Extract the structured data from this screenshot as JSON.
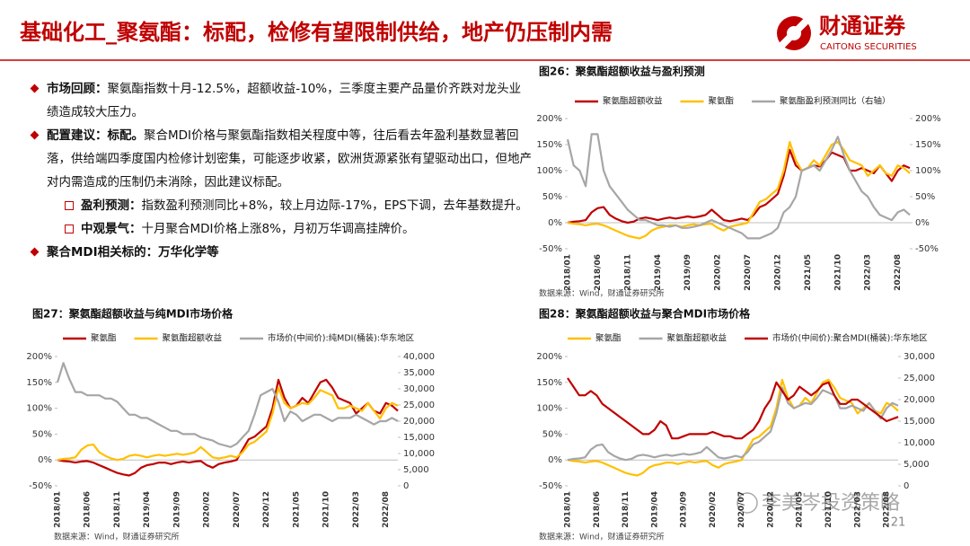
{
  "header": {
    "title": "基础化工_聚氨酯：标配，检修有望限制供给，地产仍压制内需",
    "logo_name": "财通证券",
    "logo_sub": "CAITONG SECURITIES"
  },
  "bullets": [
    {
      "label": "市场回顾：",
      "text": "聚氨酯指数十月-12.5%，超额收益-10%，三季度主要产品量价齐跌对龙头业绩造成较大压力。"
    },
    {
      "label": "配置建议：标配。",
      "text": "聚合MDI价格与聚氨酯指数相关程度中等，往后看去年盈利基数显著回落，供给端四季度国内检修计划密集，可能逐步收紧，欧洲货源紧张有望驱动出口，但地产对内需造成的压制仍未消除，因此建议标配。",
      "subs": [
        {
          "label": "盈利预测：",
          "text": "指数盈利预测同比+8%，较上月边际-17%，EPS下调，去年基数提升。"
        },
        {
          "label": "中观景气：",
          "text": "十月聚合MDI价格上涨8%，月初万华调高挂牌价。"
        }
      ]
    },
    {
      "label": "聚合MDI相关标的：万华化学等",
      "text": ""
    }
  ],
  "footer": {
    "page_number": "21",
    "watermark": "李美岑投资策略"
  },
  "chart_data": [
    {
      "type": "line",
      "title": "图26：聚氨酯超额收益与盈利预测",
      "source": "数据来源：Wind，财通证券研究所",
      "categories": [
        "2018/01",
        null,
        null,
        null,
        null,
        "2018/06",
        null,
        null,
        null,
        null,
        "2018/11",
        null,
        null,
        null,
        null,
        "2019/04",
        null,
        null,
        null,
        null,
        "2019/09",
        null,
        null,
        null,
        null,
        "2020/02",
        null,
        null,
        null,
        null,
        "2020/07",
        null,
        null,
        null,
        null,
        "2020/12",
        null,
        null,
        null,
        null,
        "2021/05",
        null,
        null,
        null,
        null,
        "2021/10",
        null,
        null,
        null,
        null,
        "2022/03",
        null,
        null,
        null,
        null,
        "2022/08",
        null,
        null
      ],
      "series": [
        {
          "name": "聚氨酯超额收益",
          "color": "#c00000",
          "values": [
            0,
            2,
            3,
            5,
            20,
            28,
            30,
            15,
            8,
            3,
            0,
            2,
            8,
            10,
            8,
            5,
            8,
            10,
            8,
            10,
            12,
            10,
            12,
            15,
            25,
            15,
            5,
            3,
            5,
            8,
            5,
            15,
            30,
            35,
            45,
            55,
            90,
            140,
            110,
            100,
            105,
            110,
            108,
            120,
            135,
            130,
            125,
            100,
            100,
            105,
            100,
            95,
            110,
            95,
            80,
            100,
            110,
            105
          ]
        },
        {
          "name": "聚氨酯",
          "color": "#ffc000",
          "values": [
            0,
            -2,
            -3,
            -5,
            -3,
            -2,
            -5,
            -10,
            -15,
            -20,
            -25,
            -28,
            -30,
            -25,
            -15,
            -10,
            -8,
            -5,
            -5,
            -8,
            -5,
            -3,
            -5,
            -3,
            -2,
            -10,
            -15,
            -8,
            -5,
            -3,
            0,
            20,
            40,
            45,
            55,
            65,
            100,
            155,
            120,
            100,
            105,
            120,
            110,
            130,
            150,
            155,
            140,
            120,
            115,
            110,
            90,
            100,
            110,
            95,
            90,
            110,
            105,
            95
          ]
        },
        {
          "name": "聚氨酯盈利预测同比（右轴）",
          "color": "#a6a6a6",
          "axis": "y2",
          "values": [
            160,
            110,
            100,
            70,
            170,
            170,
            100,
            70,
            55,
            40,
            25,
            15,
            5,
            5,
            0,
            -5,
            -5,
            -8,
            -5,
            -10,
            -10,
            -8,
            -5,
            0,
            5,
            0,
            -5,
            -10,
            -15,
            -20,
            -30,
            -30,
            -30,
            -25,
            -20,
            -10,
            20,
            30,
            50,
            100,
            105,
            110,
            100,
            120,
            140,
            165,
            130,
            100,
            80,
            60,
            50,
            30,
            15,
            10,
            5,
            20,
            25,
            15
          ]
        }
      ],
      "ylim": [
        -50,
        200
      ],
      "yticks": [
        {
          "value": -50,
          "label": "-50%"
        },
        {
          "value": 0,
          "label": "0%"
        },
        {
          "value": 50,
          "label": "50%"
        },
        {
          "value": 100,
          "label": "100%"
        },
        {
          "value": 150,
          "label": "150%"
        },
        {
          "value": 200,
          "label": "200%"
        }
      ],
      "y2lim": [
        -50,
        200
      ],
      "y2ticks": [
        {
          "value": -50,
          "label": "-50%"
        },
        {
          "value": 0,
          "label": "0%"
        },
        {
          "value": 50,
          "label": "50%"
        },
        {
          "value": 100,
          "label": "100%"
        },
        {
          "value": 150,
          "label": "150%"
        },
        {
          "value": 200,
          "label": "200%"
        }
      ]
    },
    {
      "type": "line",
      "title": "图27：聚氨酯超额收益与纯MDI市场价格",
      "source": "数据来源：Wind，财通证券研究所",
      "categories": [
        "2018/01",
        null,
        null,
        null,
        null,
        "2018/06",
        null,
        null,
        null,
        null,
        "2018/11",
        null,
        null,
        null,
        null,
        "2019/04",
        null,
        null,
        null,
        null,
        "2019/09",
        null,
        null,
        null,
        null,
        "2020/02",
        null,
        null,
        null,
        null,
        "2020/07",
        null,
        null,
        null,
        null,
        "2020/12",
        null,
        null,
        null,
        null,
        "2021/05",
        null,
        null,
        null,
        null,
        "2021/10",
        null,
        null,
        null,
        null,
        "2022/03",
        null,
        null,
        null,
        null,
        "2022/08",
        null,
        null
      ],
      "series": [
        {
          "name": "聚氨酯",
          "color": "#c00000",
          "values": [
            0,
            -2,
            -3,
            -5,
            -3,
            -2,
            -5,
            -10,
            -15,
            -20,
            -25,
            -28,
            -30,
            -25,
            -15,
            -10,
            -8,
            -5,
            -5,
            -8,
            -5,
            -3,
            -5,
            -3,
            -2,
            -10,
            -15,
            -8,
            -5,
            -3,
            0,
            20,
            40,
            45,
            55,
            65,
            100,
            155,
            120,
            100,
            105,
            120,
            110,
            130,
            150,
            155,
            140,
            120,
            115,
            110,
            90,
            100,
            110,
            95,
            90,
            110,
            105,
            95
          ]
        },
        {
          "name": "聚氨酯超额收益",
          "color": "#ffc000",
          "values": [
            0,
            2,
            3,
            5,
            20,
            28,
            30,
            15,
            8,
            3,
            0,
            2,
            8,
            10,
            8,
            5,
            8,
            10,
            8,
            10,
            12,
            10,
            12,
            15,
            25,
            15,
            5,
            3,
            5,
            8,
            5,
            15,
            30,
            35,
            45,
            55,
            90,
            140,
            110,
            100,
            105,
            110,
            108,
            120,
            135,
            130,
            125,
            100,
            100,
            105,
            100,
            95,
            110,
            95,
            80,
            100,
            110,
            105
          ]
        },
        {
          "name": "市场价(中间价):纯MDI(桶装):华东地区",
          "color": "#a6a6a6",
          "axis": "y2",
          "values": [
            32000,
            38000,
            33000,
            29000,
            29000,
            28000,
            28000,
            28000,
            27000,
            27000,
            26000,
            24000,
            22000,
            22000,
            21000,
            21000,
            20000,
            19000,
            18000,
            17000,
            17000,
            16000,
            16000,
            16000,
            15000,
            14500,
            14000,
            13000,
            12500,
            12000,
            13000,
            15000,
            17000,
            22000,
            28000,
            29000,
            30000,
            26000,
            20000,
            23000,
            22000,
            20000,
            21000,
            22000,
            22000,
            21000,
            20000,
            21000,
            21000,
            21000,
            22000,
            21000,
            20000,
            19000,
            20000,
            20000,
            21000,
            20000
          ]
        }
      ],
      "ylim": [
        -50,
        200
      ],
      "yticks": [
        {
          "value": -50,
          "label": "-50%"
        },
        {
          "value": 0,
          "label": "0%"
        },
        {
          "value": 50,
          "label": "50%"
        },
        {
          "value": 100,
          "label": "100%"
        },
        {
          "value": 150,
          "label": "150%"
        },
        {
          "value": 200,
          "label": "200%"
        }
      ],
      "y2lim": [
        0,
        40000
      ],
      "y2ticks": [
        0,
        {
          "value": 5000,
          "label": "5,000"
        },
        {
          "value": 10000,
          "label": "10,000"
        },
        {
          "value": 15000,
          "label": "15,000"
        },
        {
          "value": 20000,
          "label": "20,000"
        },
        {
          "value": 25000,
          "label": "25,000"
        },
        {
          "value": 30000,
          "label": "30,000"
        },
        {
          "value": 35000,
          "label": "35,000"
        },
        {
          "value": 40000,
          "label": "40,000"
        }
      ]
    },
    {
      "type": "line",
      "title": "图28：聚氨酯超额收益与聚合MDI市场价格",
      "source": "数据来源：Wind，财通证券研究所",
      "categories": [
        "2018/01",
        null,
        null,
        null,
        null,
        "2018/06",
        null,
        null,
        null,
        null,
        "2018/11",
        null,
        null,
        null,
        null,
        "2019/04",
        null,
        null,
        null,
        null,
        "2019/09",
        null,
        null,
        null,
        null,
        "2020/02",
        null,
        null,
        null,
        null,
        "2020/07",
        null,
        null,
        null,
        null,
        "2020/12",
        null,
        null,
        null,
        null,
        "2021/05",
        null,
        null,
        null,
        null,
        "2021/10",
        null,
        null,
        null,
        null,
        "2022/03",
        null,
        null,
        null,
        null,
        "2022/08",
        null,
        null
      ],
      "series": [
        {
          "name": "聚氨酯",
          "color": "#ffc000",
          "values": [
            0,
            -2,
            -3,
            -5,
            -3,
            -2,
            -5,
            -10,
            -15,
            -20,
            -25,
            -28,
            -30,
            -25,
            -15,
            -10,
            -8,
            -5,
            -5,
            -8,
            -5,
            -3,
            -5,
            -3,
            -2,
            -10,
            -15,
            -8,
            -5,
            -3,
            0,
            20,
            40,
            45,
            55,
            65,
            100,
            155,
            120,
            100,
            105,
            120,
            110,
            130,
            150,
            155,
            140,
            120,
            115,
            110,
            90,
            100,
            110,
            95,
            90,
            110,
            105,
            95
          ]
        },
        {
          "name": "聚氨酯超额收益",
          "color": "#a6a6a6",
          "values": [
            0,
            2,
            3,
            5,
            20,
            28,
            30,
            15,
            8,
            3,
            0,
            2,
            8,
            10,
            8,
            5,
            8,
            10,
            8,
            10,
            12,
            10,
            12,
            15,
            25,
            15,
            5,
            3,
            5,
            8,
            5,
            15,
            30,
            35,
            45,
            55,
            90,
            140,
            110,
            100,
            105,
            110,
            108,
            120,
            135,
            130,
            125,
            100,
            100,
            105,
            100,
            95,
            110,
            95,
            80,
            100,
            110,
            105
          ]
        },
        {
          "name": "市场价(中间价):聚合MDI(桶装):华东地区",
          "color": "#c00000",
          "axis": "y2",
          "values": [
            25000,
            23000,
            21000,
            21000,
            22000,
            21000,
            19000,
            18000,
            17000,
            16000,
            15000,
            14000,
            13000,
            12000,
            12000,
            13000,
            15000,
            14000,
            11000,
            11000,
            11500,
            12000,
            12000,
            12000,
            12000,
            12500,
            12000,
            11500,
            11500,
            11000,
            11000,
            12000,
            13000,
            15000,
            18000,
            20000,
            24000,
            22000,
            20000,
            21000,
            23000,
            22000,
            21000,
            22000,
            23500,
            24000,
            21000,
            19000,
            19000,
            20000,
            20000,
            19000,
            18000,
            17000,
            16000,
            15000,
            15500,
            16000
          ]
        }
      ],
      "ylim": [
        -50,
        200
      ],
      "yticks": [
        {
          "value": -50,
          "label": "-50%"
        },
        {
          "value": 0,
          "label": "0%"
        },
        {
          "value": 50,
          "label": "50%"
        },
        {
          "value": 100,
          "label": "100%"
        },
        {
          "value": 150,
          "label": "150%"
        },
        {
          "value": 200,
          "label": "200%"
        }
      ],
      "y2lim": [
        0,
        30000
      ],
      "y2ticks": [
        0,
        {
          "value": 5000,
          "label": "5,000"
        },
        {
          "value": 10000,
          "label": "10,000"
        },
        {
          "value": 15000,
          "label": "15,000"
        },
        {
          "value": 20000,
          "label": "20,000"
        },
        {
          "value": 25000,
          "label": "25,000"
        },
        {
          "value": 30000,
          "label": "30,000"
        }
      ]
    }
  ]
}
